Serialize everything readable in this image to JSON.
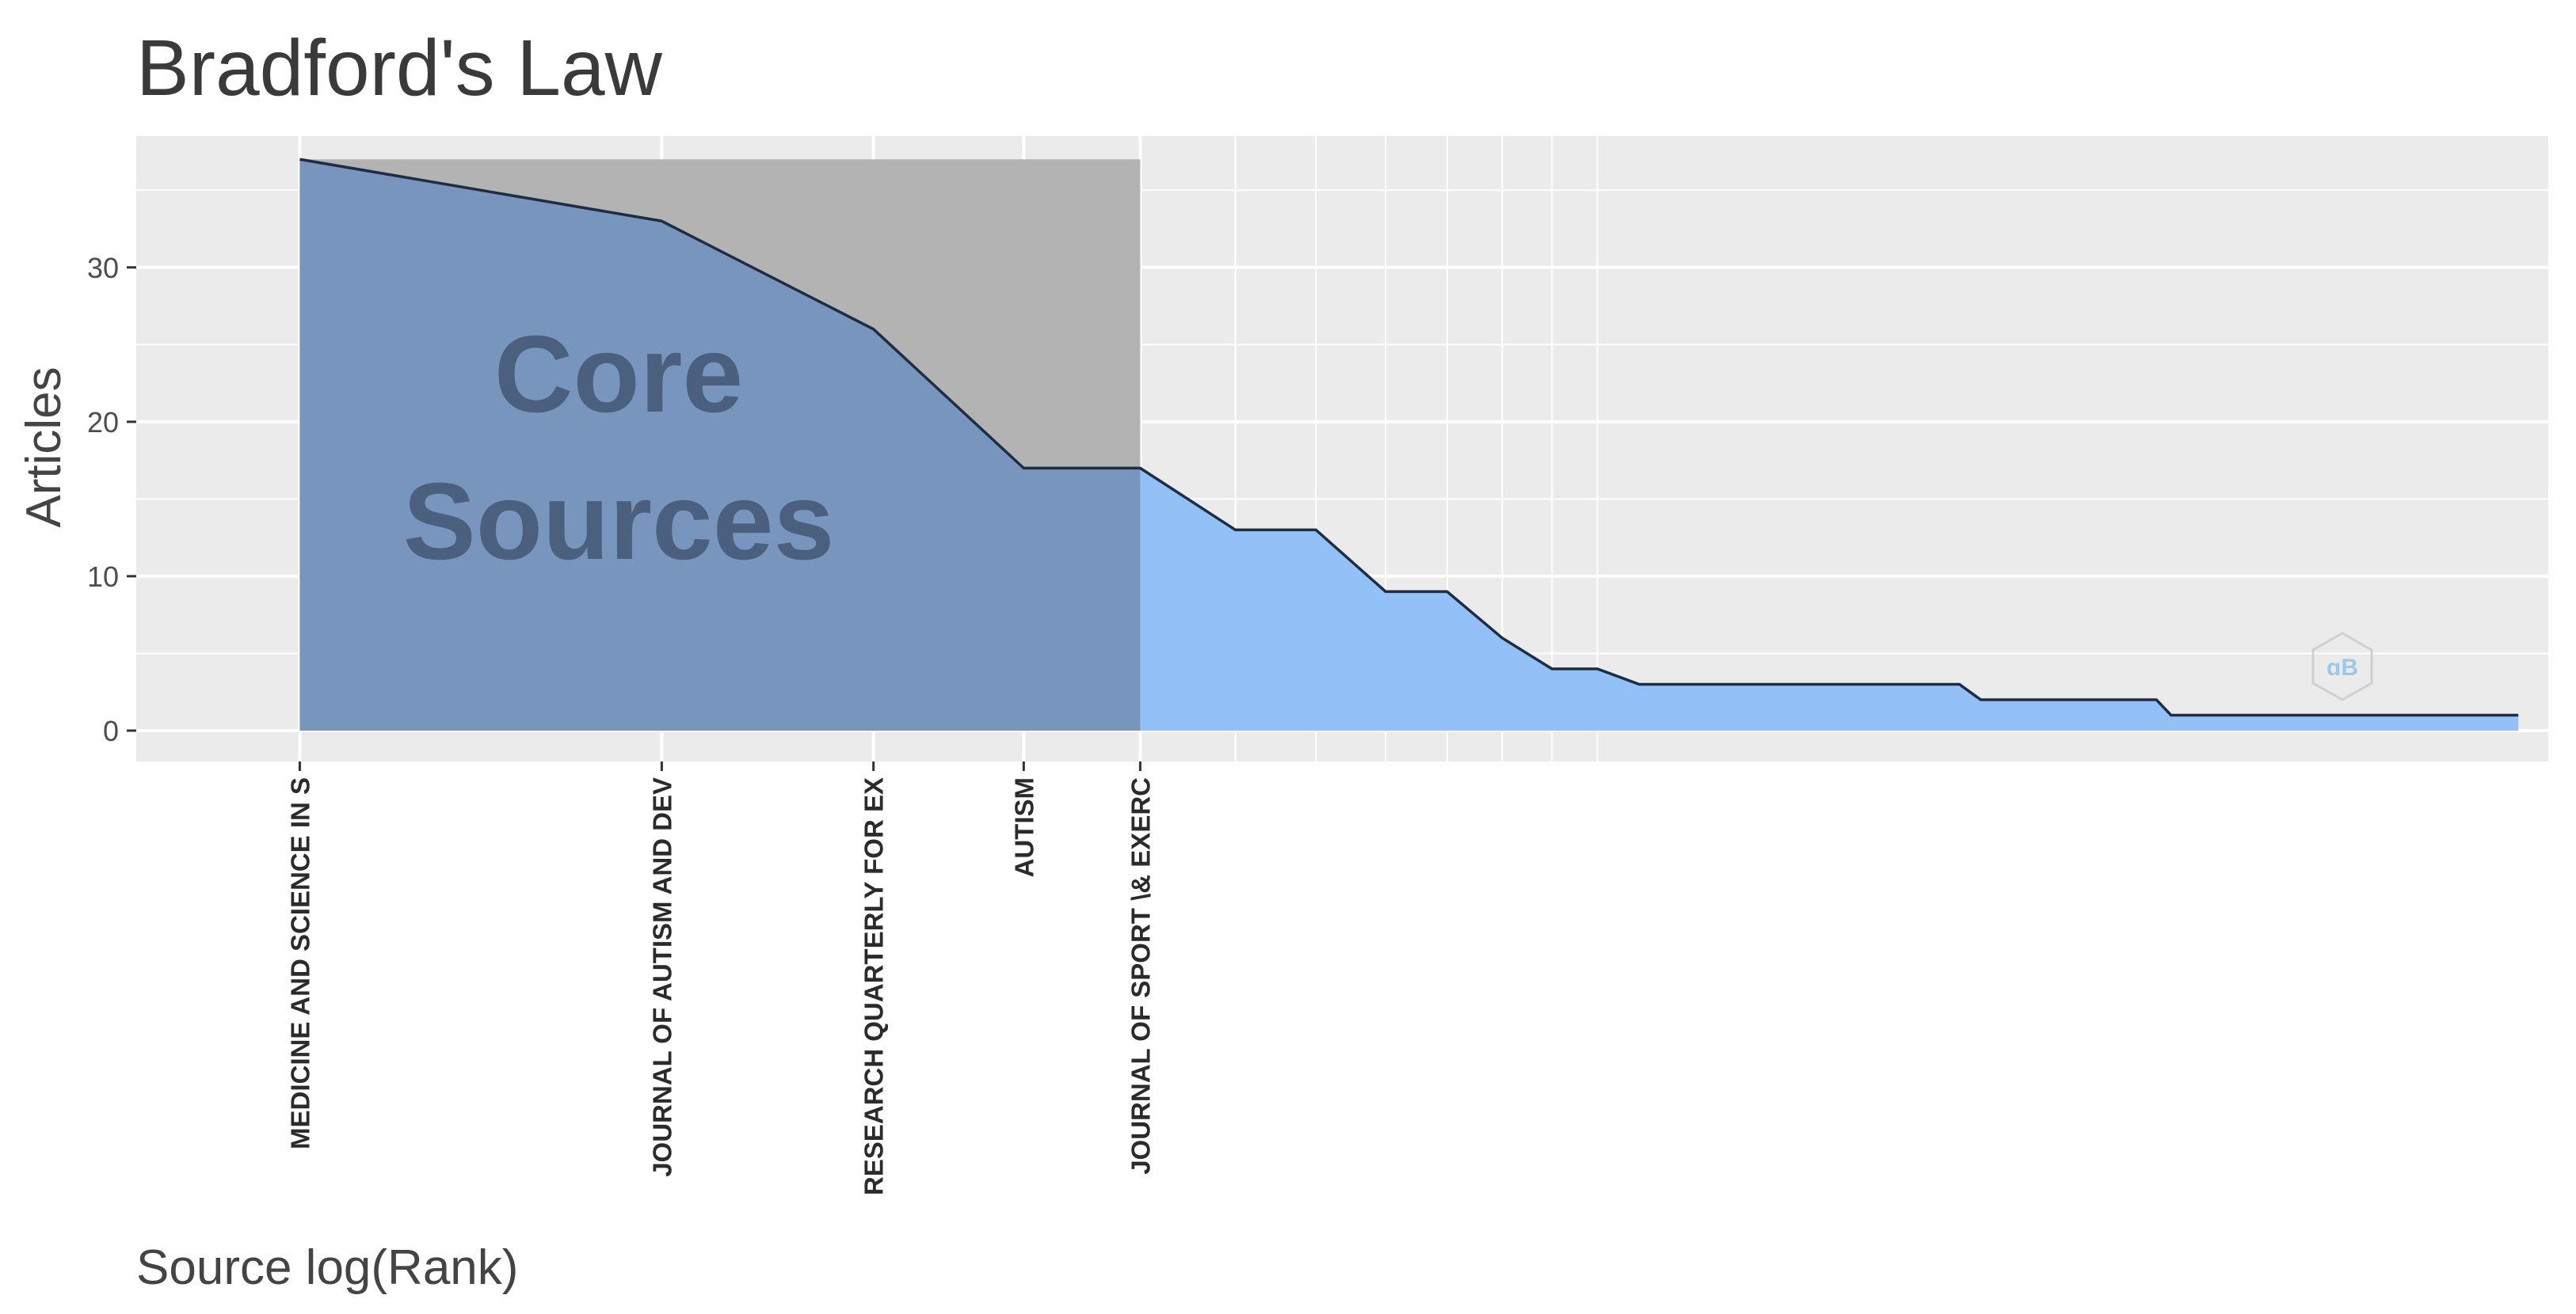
{
  "chart_data": {
    "type": "area",
    "title": "Bradford's Law",
    "xlabel": "Source log(Rank)",
    "ylabel": "Articles",
    "x_scale": "log",
    "ylim": [
      -2,
      38.5
    ],
    "xlim_log10": [
      -0.136,
      1.87
    ],
    "yticks": [
      0,
      10,
      20,
      30
    ],
    "grid": true,
    "annotation": "Core Sources",
    "core_zone": {
      "last_rank": 5,
      "max_articles": 37
    },
    "labeled_sources": [
      {
        "label": "MEDICINE AND SCIENCE IN S",
        "rank": 1,
        "articles": 37
      },
      {
        "label": "JOURNAL OF AUTISM AND DEV",
        "rank": 2,
        "articles": 33
      },
      {
        "label": "RESEARCH QUARTERLY FOR EX",
        "rank": 3,
        "articles": 26
      },
      {
        "label": "AUTISM",
        "rank": 4,
        "articles": 17
      },
      {
        "label": "JOURNAL OF SPORT \\& EXERC",
        "rank": 5,
        "articles": 17
      }
    ],
    "x": [
      1,
      2,
      3,
      4,
      5,
      6,
      7,
      8,
      9,
      10,
      11,
      12,
      13,
      14,
      15,
      16,
      17,
      18,
      19,
      20,
      21,
      22,
      23,
      24,
      25,
      26,
      27,
      28,
      29,
      30,
      31,
      32,
      33,
      34,
      35,
      36,
      37,
      38,
      39,
      40,
      41,
      42,
      43,
      44,
      45,
      46,
      47,
      48,
      49,
      50,
      51,
      52,
      53,
      54,
      55,
      56,
      57,
      58,
      59,
      60,
      61,
      62,
      63,
      64,
      65,
      66,
      67,
      68,
      69,
      70
    ],
    "values": [
      37,
      33,
      26,
      17,
      17,
      13,
      13,
      9,
      9,
      6,
      4,
      4,
      3,
      3,
      3,
      3,
      3,
      3,
      3,
      3,
      3,
      3,
      3,
      3,
      2,
      2,
      2,
      2,
      2,
      2,
      2,
      2,
      2,
      2,
      2,
      1,
      1,
      1,
      1,
      1,
      1,
      1,
      1,
      1,
      1,
      1,
      1,
      1,
      1,
      1,
      1,
      1,
      1,
      1,
      1,
      1,
      1,
      1,
      1,
      1,
      1,
      1,
      1,
      1,
      1,
      1,
      1,
      1,
      1,
      1
    ],
    "colors": {
      "panel": "#ebebeb",
      "grid": "#ffffff",
      "core_box": "#b3b3b3",
      "area_core": "#7895bd",
      "area_rest": "#93c0f6",
      "line": "#1f2d42",
      "core_text": "#4b5f7f"
    }
  }
}
